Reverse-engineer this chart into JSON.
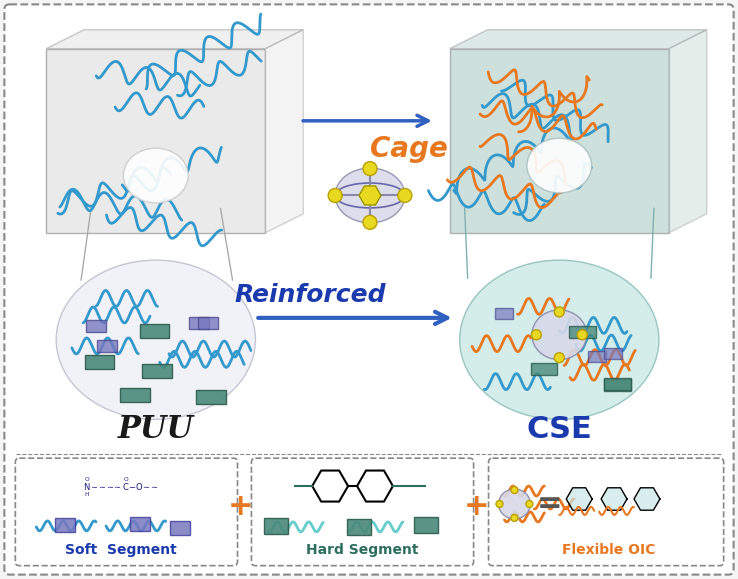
{
  "bg_color": "#f5f5f5",
  "outer_border_color": "#a0a0a0",
  "outer_border_ls": "dashed",
  "top_panel_bg": "#ffffff",
  "bottom_panel_bg": "#f0f0f0",
  "cage_text": "Cage",
  "cage_color": "#e87820",
  "reinforced_text": "Reinforced",
  "reinforced_color": "#1a3aad",
  "puu_text": "PUU",
  "puu_color": "#1a1a1a",
  "cse_text": "CSE",
  "cse_color": "#1a3aad",
  "soft_seg_text": "Soft  Segment",
  "soft_seg_color": "#1a3aad",
  "hard_seg_text": "Hard Segment",
  "hard_seg_color": "#2e6e5e",
  "oic_text": "Flexible OIC",
  "oic_color": "#e87820",
  "left_box_color": "#e0e0e0",
  "right_box_color": "#b0d8d0",
  "polymer_blue": "#3399cc",
  "polymer_orange": "#e87820",
  "cage_yellow": "#e8d820",
  "hard_seg_green": "#4a8a7a",
  "soft_seg_purple": "#7878c0",
  "plus_color": "#e87820",
  "equal_color": "#555555",
  "arrow_blue": "#3060c0"
}
